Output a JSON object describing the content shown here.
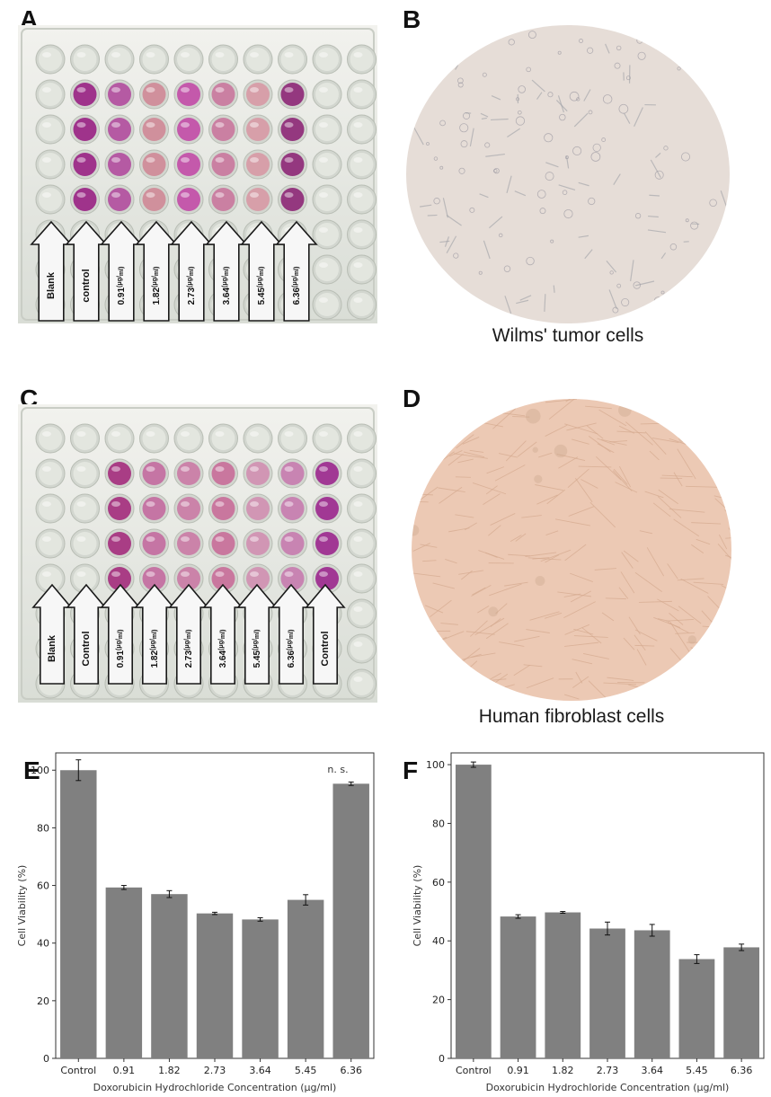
{
  "panels": {
    "a": {
      "letter": "A",
      "labels": [
        "Blank",
        "control",
        "0.91",
        "1.82",
        "2.73",
        "3.64",
        "5.45",
        "6.36"
      ]
    },
    "b": {
      "letter": "B",
      "caption": "Wilms' tumor cells"
    },
    "c": {
      "letter": "C",
      "labels": [
        "Blank",
        "Control",
        "0.91",
        "1.82",
        "2.73",
        "3.64",
        "5.45",
        "6.36",
        "Control"
      ]
    },
    "d": {
      "letter": "D",
      "caption": "Human fibroblast cells"
    },
    "e": {
      "letter": "E"
    },
    "f": {
      "letter": "F"
    }
  },
  "unit_mark": {
    "num": "μg",
    "den": "ml"
  },
  "colors": {
    "bar": "#808080",
    "wilms_bg": "#e6ddd7",
    "fibro_bg": "#ecc9b4",
    "magenta": "#9a1f82"
  },
  "chart_data": [
    {
      "type": "bar",
      "panel": "E",
      "categories": [
        "Control",
        "0.91",
        "1.82",
        "2.73",
        "3.64",
        "5.45",
        "6.36"
      ],
      "values": [
        100,
        59.3,
        57.0,
        50.3,
        48.2,
        55.0,
        95.3
      ],
      "errors": [
        3.6,
        0.7,
        1.2,
        0.4,
        0.6,
        1.8,
        0.6
      ],
      "xlabel": "Doxorubicin Hydrochloride Concentration (μg/ml)",
      "ylabel": "Cell Viability (%)",
      "ylim": [
        0,
        106
      ],
      "yticks": [
        0,
        20,
        40,
        60,
        80,
        100
      ],
      "annotation": "n. s.",
      "grid": false
    },
    {
      "type": "bar",
      "panel": "F",
      "categories": [
        "Control",
        "0.91",
        "1.82",
        "2.73",
        "3.64",
        "5.45",
        "6.36"
      ],
      "values": [
        100,
        48.3,
        49.7,
        44.2,
        43.6,
        33.8,
        37.8
      ],
      "errors": [
        0.9,
        0.6,
        0.3,
        2.2,
        2.0,
        1.5,
        1.1
      ],
      "xlabel": "Doxorubicin Hydrochloride Concentration (μg/ml)",
      "ylabel": "Cell Viability (%)",
      "ylim": [
        0,
        104
      ],
      "yticks": [
        0,
        20,
        40,
        60,
        80,
        100
      ],
      "grid": false
    }
  ]
}
